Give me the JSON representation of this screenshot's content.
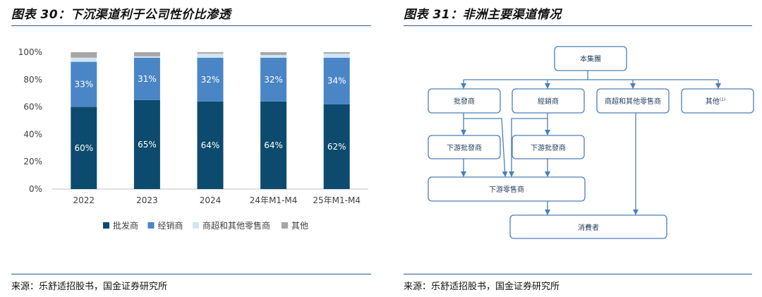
{
  "left": {
    "title": "图表 30：下沉渠道利于公司性价比渗透",
    "source": "来源：乐舒适招股书，国金证券研究所"
  },
  "right": {
    "title": "图表 31：非洲主要渠道情况",
    "source": "来源：乐舒适招股书，国金证券研究所",
    "flowchart": {
      "nodes": {
        "group": "本集團",
        "wholesaler": "批發商",
        "distributor": "經銷商",
        "supermarket": "商超和其他零售商",
        "other": "其他",
        "other_note": "(1)",
        "down_wholesaler_1": "下游批發商",
        "down_wholesaler_2": "下游批發商",
        "down_retailer": "下游零售商",
        "consumer": "消費者"
      }
    }
  },
  "chart_data": {
    "type": "bar",
    "stacked": true,
    "categories": [
      "2022",
      "2023",
      "2024",
      "24年M1-M4",
      "25年M1-M4"
    ],
    "series": [
      {
        "name": "批发商",
        "color": "#0d4b6e",
        "values": [
          60,
          65,
          64,
          64,
          62
        ],
        "labels": [
          "60%",
          "65%",
          "64%",
          "64%",
          "62%"
        ]
      },
      {
        "name": "经销商",
        "color": "#4a86c5",
        "values": [
          33,
          31,
          32,
          32,
          34
        ],
        "labels": [
          "33%",
          "31%",
          "32%",
          "32%",
          "34%"
        ]
      },
      {
        "name": "商超和其他零售商",
        "color": "#d3e5f3",
        "values": [
          3,
          1,
          3,
          2,
          3
        ],
        "labels": [
          "",
          "",
          "",
          "",
          ""
        ]
      },
      {
        "name": "其他",
        "color": "#a6a6a6",
        "values": [
          4,
          3,
          1,
          2,
          1
        ],
        "labels": [
          "",
          "",
          "",
          "",
          ""
        ]
      }
    ],
    "y_ticks": [
      "0%",
      "20%",
      "40%",
      "60%",
      "80%",
      "100%"
    ],
    "ylim": [
      0,
      100
    ],
    "grid": false,
    "legend_position": "bottom"
  }
}
